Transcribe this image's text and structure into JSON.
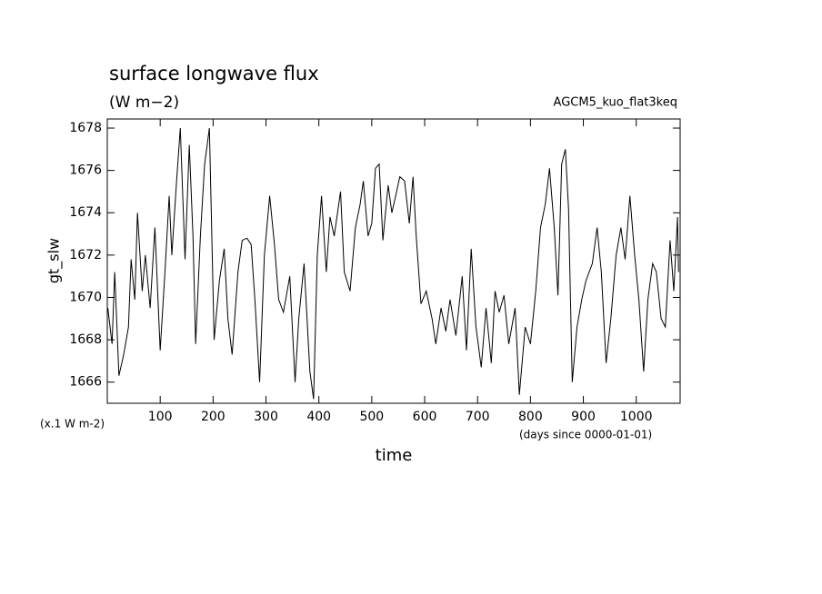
{
  "chart_data": {
    "type": "line",
    "title": "surface longwave flux",
    "subtitle": "(W m−2)",
    "annotation": "AGCM5_kuo_flat3keq",
    "ylabel": "gt_slw",
    "yunits": "(x.1 W m-2)",
    "xunits": "(days since 0000-01-01)",
    "xlabel": "time",
    "color": "#000000",
    "x": [
      1,
      9,
      14,
      22,
      31,
      40,
      45,
      52,
      57,
      66,
      72,
      81,
      90,
      100,
      109,
      117,
      122,
      131,
      138,
      147,
      155,
      162,
      167,
      176,
      184,
      193,
      202,
      212,
      221,
      228,
      236,
      247,
      255,
      264,
      272,
      279,
      288,
      297,
      307,
      316,
      324,
      333,
      345,
      355,
      362,
      372,
      383,
      390,
      397,
      405,
      414,
      421,
      429,
      441,
      448,
      459,
      469,
      478,
      484,
      493,
      500,
      507,
      514,
      521,
      531,
      538,
      547,
      553,
      562,
      571,
      578,
      584,
      593,
      603,
      614,
      621,
      631,
      640,
      648,
      659,
      671,
      679,
      688,
      697,
      707,
      716,
      726,
      733,
      741,
      750,
      759,
      771,
      779,
      790,
      800,
      810,
      819,
      828,
      836,
      845,
      852,
      859,
      866,
      872,
      879,
      888,
      897,
      905,
      917,
      926,
      934,
      943,
      952,
      962,
      971,
      979,
      988,
      997,
      1005,
      1014,
      1022,
      1031,
      1038,
      1047,
      1055,
      1064,
      1071,
      1078,
      1080
    ],
    "values": [
      1669.5,
      1667.8,
      1671.2,
      1666.3,
      1667.3,
      1668.6,
      1671.8,
      1669.9,
      1674.0,
      1670.3,
      1672.0,
      1669.5,
      1673.3,
      1667.5,
      1671.2,
      1674.8,
      1672.0,
      1675.5,
      1678.0,
      1671.8,
      1677.2,
      1672.9,
      1667.8,
      1672.9,
      1676.3,
      1678.0,
      1668.0,
      1670.8,
      1672.3,
      1669.0,
      1667.3,
      1671.2,
      1672.7,
      1672.8,
      1672.5,
      1669.9,
      1666.0,
      1672.0,
      1674.8,
      1672.5,
      1669.9,
      1669.3,
      1671.0,
      1666.0,
      1669.0,
      1671.6,
      1666.5,
      1665.2,
      1672.0,
      1674.8,
      1671.2,
      1673.8,
      1672.9,
      1675.0,
      1671.2,
      1670.3,
      1673.3,
      1674.4,
      1675.5,
      1672.9,
      1673.5,
      1676.1,
      1676.3,
      1672.7,
      1675.3,
      1674.0,
      1675.0,
      1675.7,
      1675.5,
      1673.5,
      1675.7,
      1672.9,
      1669.7,
      1670.3,
      1669.0,
      1667.8,
      1669.5,
      1668.4,
      1669.9,
      1668.2,
      1671.0,
      1667.5,
      1672.3,
      1668.6,
      1666.7,
      1669.5,
      1666.9,
      1670.3,
      1669.3,
      1670.1,
      1667.8,
      1669.5,
      1665.4,
      1668.6,
      1667.8,
      1670.3,
      1673.3,
      1674.4,
      1676.1,
      1673.3,
      1670.1,
      1676.3,
      1677.0,
      1674.2,
      1666.0,
      1668.6,
      1669.9,
      1670.8,
      1671.6,
      1673.3,
      1671.2,
      1666.9,
      1669.0,
      1672.0,
      1673.3,
      1671.8,
      1674.8,
      1672.0,
      1669.9,
      1666.5,
      1669.9,
      1671.6,
      1671.2,
      1669.0,
      1668.6,
      1672.7,
      1670.3,
      1673.8,
      1671.2
    ],
    "xlim": [
      0,
      1083
    ],
    "ylim": [
      1665,
      1678.43
    ],
    "xticks": [
      100,
      200,
      300,
      400,
      500,
      600,
      700,
      800,
      900,
      1000
    ],
    "yticks": [
      1666,
      1668,
      1670,
      1672,
      1674,
      1676,
      1678
    ]
  }
}
